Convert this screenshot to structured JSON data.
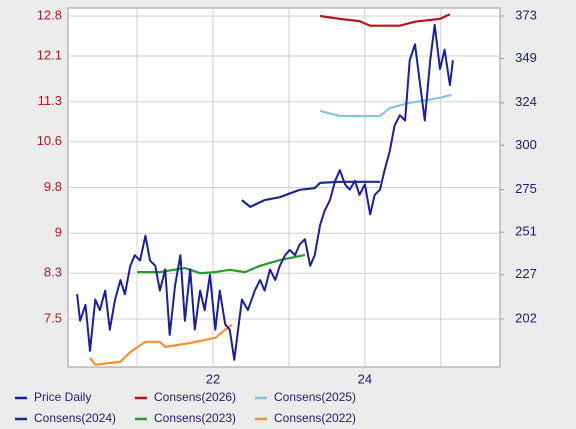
{
  "chart_data": {
    "type": "line",
    "xlim": [
      20.09,
      25.78
    ],
    "xticks": [
      22,
      24
    ],
    "xgrid": [
      21,
      22,
      23,
      24,
      25
    ],
    "ylim": [
      6.66,
      12.94
    ],
    "yticks": [
      12.8,
      12.1,
      11.3,
      10.6,
      9.8,
      9.0,
      8.3,
      7.5
    ],
    "y2lim": [
      174.9,
      377.5
    ],
    "y2ticks": [
      373,
      349,
      324,
      300,
      275,
      251,
      227,
      202
    ],
    "grid": true,
    "series": [
      {
        "name": "Price Daily",
        "color": "#1a1f9e",
        "axis": "y2",
        "x": [
          20.21,
          20.25,
          20.32,
          20.38,
          20.45,
          20.51,
          20.58,
          20.64,
          20.71,
          20.78,
          20.84,
          20.91,
          20.97,
          21.04,
          21.11,
          21.17,
          21.24,
          21.3,
          21.37,
          21.43,
          21.5,
          21.57,
          21.63,
          21.7,
          21.76,
          21.83,
          21.89,
          21.96,
          22.03,
          22.09,
          22.16,
          22.22,
          22.28,
          22.33,
          22.38,
          22.46,
          22.55,
          22.62,
          22.68,
          22.75,
          22.82,
          22.88,
          22.95,
          23.01,
          23.08,
          23.14,
          23.21,
          23.28,
          23.34,
          23.41,
          23.47,
          23.54,
          23.61,
          23.67,
          23.74,
          23.8,
          23.87,
          23.93,
          24.0,
          24.07,
          24.13,
          24.2,
          24.26,
          24.33,
          24.39,
          24.46,
          24.53,
          24.59,
          24.66,
          24.72,
          24.79,
          24.86,
          24.92,
          24.99,
          25.05,
          25.12,
          25.16
        ],
        "values": [
          216,
          201,
          210,
          184,
          213,
          207,
          218,
          196,
          213,
          224,
          216,
          232,
          238,
          235,
          249,
          235,
          232,
          218,
          230,
          193,
          221,
          238,
          201,
          230,
          196,
          218,
          207,
          227,
          196,
          218,
          199,
          196,
          179,
          196,
          213,
          207,
          218,
          224,
          218,
          230,
          224,
          232,
          238,
          241,
          238,
          244,
          247,
          232,
          238,
          255,
          263,
          269,
          280,
          286,
          278,
          275,
          280,
          272,
          278,
          261,
          272,
          275,
          286,
          297,
          311,
          317,
          314,
          348,
          357,
          337,
          314,
          348,
          368,
          343,
          354,
          334,
          348
        ]
      },
      {
        "name": "Consens(2026)",
        "color": "#b0171f",
        "x": [
          23.41,
          23.67,
          23.93,
          24.07,
          24.46,
          24.66,
          24.99,
          25.12
        ],
        "values": [
          12.8,
          12.75,
          12.71,
          12.63,
          12.63,
          12.7,
          12.75,
          12.83
        ]
      },
      {
        "name": "Consens(2025)",
        "color": "#86c5e0",
        "x": [
          23.41,
          23.67,
          24.2,
          24.33,
          24.59,
          24.99,
          25.14
        ],
        "values": [
          11.14,
          11.05,
          11.05,
          11.19,
          11.28,
          11.37,
          11.42
        ]
      },
      {
        "name": "Consens(2024)",
        "color": "#1f2a8a",
        "x": [
          22.38,
          22.49,
          22.68,
          22.88,
          23.14,
          23.34,
          23.41,
          23.67,
          24.2
        ],
        "values": [
          9.58,
          9.46,
          9.58,
          9.63,
          9.76,
          9.79,
          9.88,
          9.9,
          9.9
        ]
      },
      {
        "name": "Consens(2023)",
        "color": "#2a9a2a",
        "x": [
          21.0,
          21.3,
          21.63,
          21.83,
          22.03,
          22.22,
          22.42,
          22.62,
          22.88,
          23.21
        ],
        "values": [
          8.32,
          8.32,
          8.39,
          8.3,
          8.32,
          8.36,
          8.32,
          8.43,
          8.53,
          8.62
        ]
      },
      {
        "name": "Consens(2022)",
        "color": "#f5922f",
        "x": [
          20.38,
          20.45,
          20.78,
          20.91,
          21.11,
          21.3,
          21.37,
          21.7,
          22.03,
          22.16,
          22.25
        ],
        "values": [
          6.82,
          6.7,
          6.75,
          6.92,
          7.1,
          7.1,
          7.01,
          7.08,
          7.17,
          7.31,
          7.4
        ]
      }
    ]
  }
}
